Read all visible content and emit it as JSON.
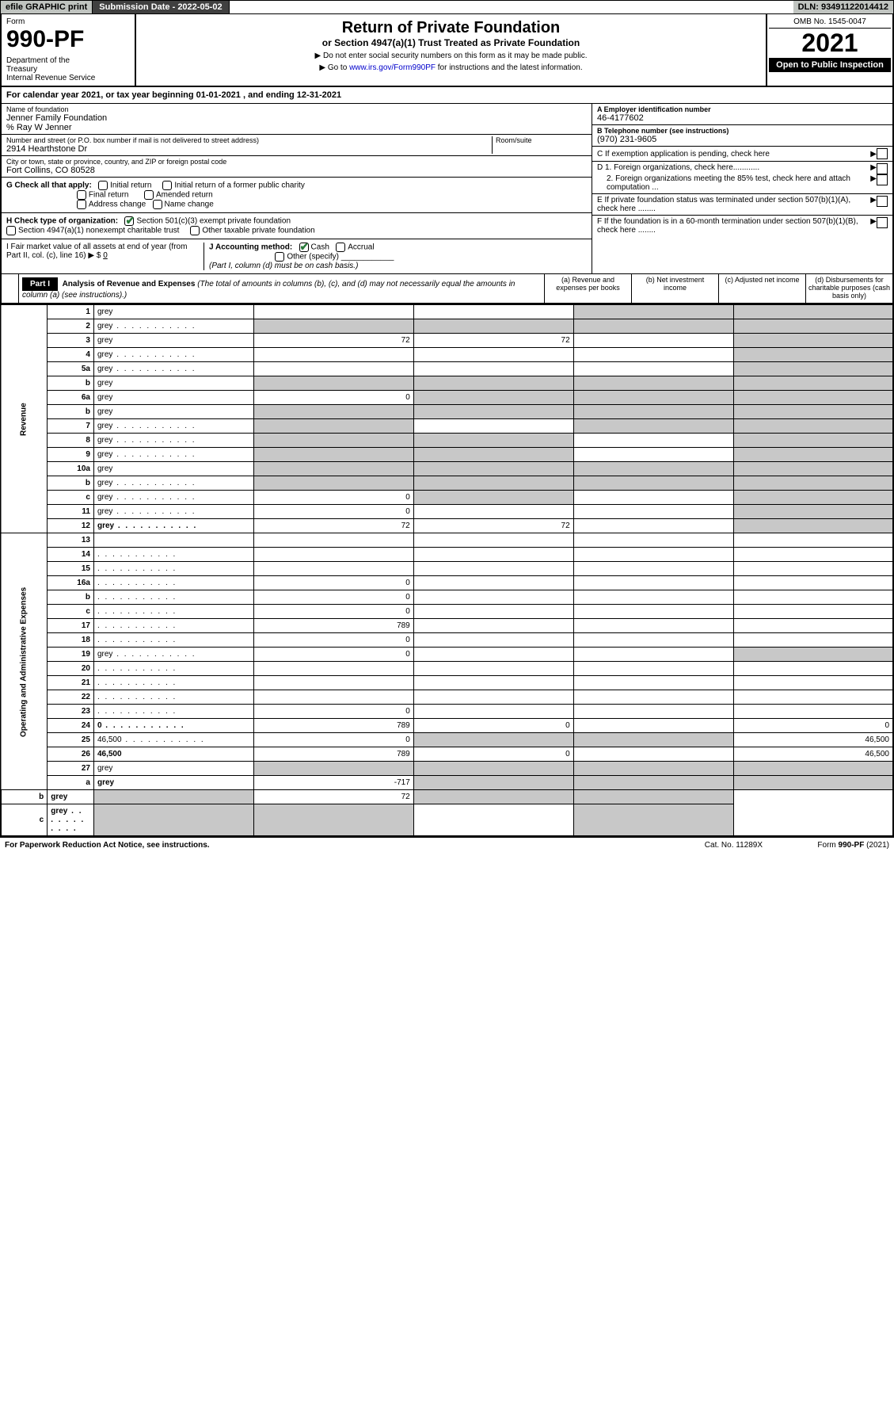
{
  "topbar": {
    "efile": "efile GRAPHIC print",
    "subdate_label": "Submission Date - 2022-05-02",
    "dln": "DLN: 93491122014412"
  },
  "header": {
    "form": "Form",
    "num": "990-PF",
    "dept": "Department of the Treasury\nInternal Revenue Service",
    "title": "Return of Private Foundation",
    "sub": "or Section 4947(a)(1) Trust Treated as Private Foundation",
    "note1": "▶ Do not enter social security numbers on this form as it may be made public.",
    "note2_pre": "▶ Go to ",
    "note2_link": "www.irs.gov/Form990PF",
    "note2_post": " for instructions and the latest information.",
    "omb": "OMB No. 1545-0047",
    "year": "2021",
    "open": "Open to Public Inspection"
  },
  "calyear": "For calendar year 2021, or tax year beginning 01-01-2021         , and ending 12-31-2021",
  "foundation": {
    "name_lbl": "Name of foundation",
    "name": "Jenner Family Foundation",
    "care_of": "% Ray W Jenner",
    "addr_lbl": "Number and street (or P.O. box number if mail is not delivered to street address)",
    "addr": "2914 Hearthstone Dr",
    "room_lbl": "Room/suite",
    "city_lbl": "City or town, state or province, country, and ZIP or foreign postal code",
    "city": "Fort Collins, CO  80528",
    "ein_lbl": "A Employer identification number",
    "ein": "46-4177602",
    "phone_lbl": "B Telephone number (see instructions)",
    "phone": "(970) 231-9605",
    "c_lbl": "C If exemption application is pending, check here",
    "d1": "D 1. Foreign organizations, check here............",
    "d2": "2. Foreign organizations meeting the 85% test, check here and attach computation ...",
    "e_lbl": "E  If private foundation status was terminated under section 507(b)(1)(A), check here ........",
    "f_lbl": "F  If the foundation is in a 60-month termination under section 507(b)(1)(B), check here ........"
  },
  "g": {
    "label": "G Check all that apply:",
    "initial": "Initial return",
    "final": "Final return",
    "address": "Address change",
    "initial_former": "Initial return of a former public charity",
    "amended": "Amended return",
    "name_change": "Name change"
  },
  "h": {
    "label": "H Check type of organization:",
    "opt1": "Section 501(c)(3) exempt private foundation",
    "opt2": "Section 4947(a)(1) nonexempt charitable trust",
    "opt3": "Other taxable private foundation"
  },
  "i": {
    "label": "I Fair market value of all assets at end of year (from Part II, col. (c), line 16) ▶ $",
    "val": "0"
  },
  "j": {
    "label": "J Accounting method:",
    "cash": "Cash",
    "accrual": "Accrual",
    "other": "Other (specify)",
    "note": "(Part I, column (d) must be on cash basis.)"
  },
  "part1": {
    "label": "Part I",
    "title": "Analysis of Revenue and Expenses",
    "note": "(The total of amounts in columns (b), (c), and (d) may not necessarily equal the amounts in column (a) (see instructions).)",
    "col_a": "(a)   Revenue and expenses per books",
    "col_b": "(b)   Net investment income",
    "col_c": "(c)   Adjusted net income",
    "col_d": "(d)   Disbursements for charitable purposes (cash basis only)"
  },
  "sections": {
    "revenue": "Revenue",
    "expenses": "Operating and Administrative Expenses"
  },
  "rows": [
    {
      "n": "1",
      "d": "grey",
      "a": "",
      "b": "",
      "c": "grey"
    },
    {
      "n": "2",
      "d": "grey",
      "dots": true,
      "a": "grey",
      "b": "grey",
      "c": "grey"
    },
    {
      "n": "3",
      "d": "grey",
      "a": "72",
      "b": "72",
      "c": ""
    },
    {
      "n": "4",
      "d": "grey",
      "dots": true,
      "a": "",
      "b": "",
      "c": ""
    },
    {
      "n": "5a",
      "d": "grey",
      "dots": true,
      "a": "",
      "b": "",
      "c": ""
    },
    {
      "n": "b",
      "d": "grey",
      "a": "grey",
      "b": "grey",
      "c": "grey"
    },
    {
      "n": "6a",
      "d": "grey",
      "a": "0",
      "b": "grey",
      "c": "grey"
    },
    {
      "n": "b",
      "d": "grey",
      "a": "grey",
      "b": "grey",
      "c": "grey"
    },
    {
      "n": "7",
      "d": "grey",
      "dots": true,
      "a": "grey",
      "b": "",
      "c": "grey"
    },
    {
      "n": "8",
      "d": "grey",
      "dots": true,
      "a": "grey",
      "b": "grey",
      "c": ""
    },
    {
      "n": "9",
      "d": "grey",
      "dots": true,
      "a": "grey",
      "b": "grey",
      "c": ""
    },
    {
      "n": "10a",
      "d": "grey",
      "a": "grey",
      "b": "grey",
      "c": "grey"
    },
    {
      "n": "b",
      "d": "grey",
      "dots": true,
      "a": "grey",
      "b": "grey",
      "c": "grey"
    },
    {
      "n": "c",
      "d": "grey",
      "dots": true,
      "a": "0",
      "b": "grey",
      "c": ""
    },
    {
      "n": "11",
      "d": "grey",
      "dots": true,
      "a": "0",
      "b": "",
      "c": ""
    },
    {
      "n": "12",
      "d": "grey",
      "bold": true,
      "dots": true,
      "a": "72",
      "b": "72",
      "c": ""
    },
    {
      "n": "13",
      "d": "",
      "a": "",
      "b": "",
      "c": ""
    },
    {
      "n": "14",
      "d": "",
      "dots": true,
      "a": "",
      "b": "",
      "c": ""
    },
    {
      "n": "15",
      "d": "",
      "dots": true,
      "a": "",
      "b": "",
      "c": ""
    },
    {
      "n": "16a",
      "d": "",
      "dots": true,
      "a": "0",
      "b": "",
      "c": ""
    },
    {
      "n": "b",
      "d": "",
      "dots": true,
      "a": "0",
      "b": "",
      "c": ""
    },
    {
      "n": "c",
      "d": "",
      "dots": true,
      "a": "0",
      "b": "",
      "c": ""
    },
    {
      "n": "17",
      "d": "",
      "dots": true,
      "a": "789",
      "b": "",
      "c": ""
    },
    {
      "n": "18",
      "d": "",
      "dots": true,
      "a": "0",
      "b": "",
      "c": ""
    },
    {
      "n": "19",
      "d": "grey",
      "dots": true,
      "a": "0",
      "b": "",
      "c": ""
    },
    {
      "n": "20",
      "d": "",
      "dots": true,
      "a": "",
      "b": "",
      "c": ""
    },
    {
      "n": "21",
      "d": "",
      "dots": true,
      "a": "",
      "b": "",
      "c": ""
    },
    {
      "n": "22",
      "d": "",
      "dots": true,
      "a": "",
      "b": "",
      "c": ""
    },
    {
      "n": "23",
      "d": "",
      "dots": true,
      "a": "0",
      "b": "",
      "c": ""
    },
    {
      "n": "24",
      "d": "0",
      "bold": true,
      "dots": true,
      "a": "789",
      "b": "0",
      "c": ""
    },
    {
      "n": "25",
      "d": "46,500",
      "dots": true,
      "a": "0",
      "b": "grey",
      "c": "grey"
    },
    {
      "n": "26",
      "d": "46,500",
      "bold": true,
      "a": "789",
      "b": "0",
      "c": ""
    },
    {
      "n": "27",
      "d": "grey",
      "a": "grey",
      "b": "grey",
      "c": "grey"
    },
    {
      "n": "a",
      "d": "grey",
      "bold": true,
      "a": "-717",
      "b": "grey",
      "c": "grey"
    },
    {
      "n": "b",
      "d": "grey",
      "bold": true,
      "a": "grey",
      "b": "72",
      "c": "grey"
    },
    {
      "n": "c",
      "d": "grey",
      "bold": true,
      "dots": true,
      "a": "grey",
      "b": "grey",
      "c": ""
    }
  ],
  "footer": {
    "left": "For Paperwork Reduction Act Notice, see instructions.",
    "mid": "Cat. No. 11289X",
    "right": "Form 990-PF (2021)"
  },
  "colors": {
    "grey": "#c8c8c8",
    "black": "#000000",
    "link": "#0000cc",
    "check": "#2a7a3a"
  }
}
